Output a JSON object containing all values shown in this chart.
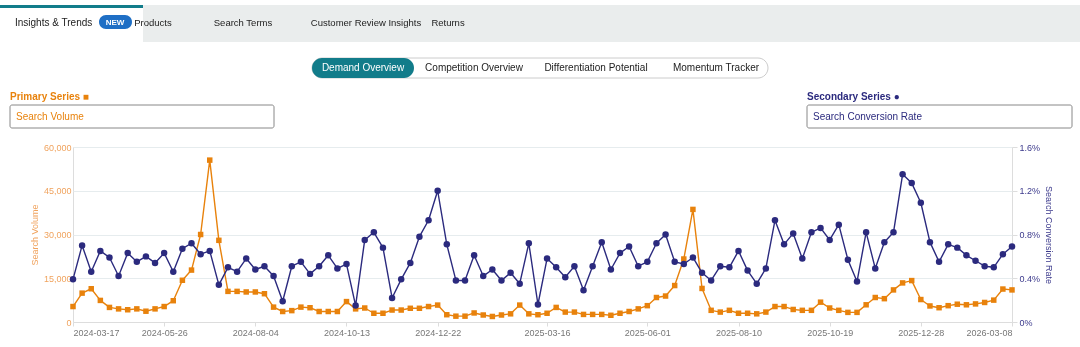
{
  "chart_data": {
    "type": "line",
    "x": [
      "2024-03-17",
      "2024-03-24",
      "2024-03-31",
      "2024-04-07",
      "2024-04-14",
      "2024-04-21",
      "2024-04-28",
      "2024-05-05",
      "2024-05-12",
      "2024-05-19",
      "2024-05-26",
      "2024-06-02",
      "2024-06-09",
      "2024-06-16",
      "2024-06-23",
      "2024-06-30",
      "2024-07-07",
      "2024-07-14",
      "2024-07-21",
      "2024-07-28",
      "2024-08-04",
      "2024-08-11",
      "2024-08-18",
      "2024-08-25",
      "2024-09-01",
      "2024-09-08",
      "2024-09-15",
      "2024-09-22",
      "2024-09-29",
      "2024-10-06",
      "2024-10-13",
      "2024-10-20",
      "2024-10-27",
      "2024-11-03",
      "2024-11-10",
      "2024-11-17",
      "2024-11-24",
      "2024-12-01",
      "2024-12-08",
      "2024-12-15",
      "2024-12-22",
      "2024-12-29",
      "2025-01-05",
      "2025-01-12",
      "2025-01-19",
      "2025-01-26",
      "2025-02-02",
      "2025-02-09",
      "2025-02-16",
      "2025-02-23",
      "2025-03-02",
      "2025-03-09",
      "2025-03-16",
      "2025-03-23",
      "2025-03-30",
      "2025-04-06",
      "2025-04-13",
      "2025-04-20",
      "2025-04-27",
      "2025-05-04",
      "2025-05-11",
      "2025-05-18",
      "2025-05-25",
      "2025-06-01",
      "2025-06-08",
      "2025-06-15",
      "2025-06-22",
      "2025-06-29",
      "2025-07-06",
      "2025-07-13",
      "2025-07-20",
      "2025-07-27",
      "2025-08-03",
      "2025-08-10",
      "2025-08-17",
      "2025-08-24",
      "2025-08-31",
      "2025-09-07",
      "2025-09-14",
      "2025-09-21",
      "2025-09-28",
      "2025-10-05",
      "2025-10-12",
      "2025-10-19",
      "2025-10-26",
      "2025-11-02",
      "2025-11-09",
      "2025-11-16",
      "2025-11-23",
      "2025-11-30",
      "2025-12-07",
      "2025-12-14",
      "2025-12-21",
      "2025-12-28",
      "2026-01-04",
      "2026-01-11",
      "2026-01-18",
      "2026-01-25",
      "2026-02-01",
      "2026-02-08",
      "2026-02-15",
      "2026-02-22",
      "2026-03-01",
      "2026-03-08"
    ],
    "series": [
      {
        "color": "#e8820c",
        "marker": "square",
        "values": [
          5300,
          9900,
          11400,
          7400,
          5000,
          4500,
          4200,
          4500,
          3700,
          4500,
          5300,
          7300,
          14300,
          17800,
          30000,
          55500,
          28000,
          10500,
          10500,
          10300,
          10300,
          9700,
          5100,
          3600,
          3900,
          5100,
          4900,
          3600,
          3600,
          3600,
          7000,
          4500,
          4800,
          3000,
          3000,
          4100,
          4100,
          4700,
          4700,
          5300,
          5800,
          2500,
          2000,
          2000,
          3100,
          2400,
          1900,
          2400,
          2800,
          5800,
          2800,
          2500,
          3000,
          5000,
          3400,
          3400,
          2600,
          2600,
          2600,
          2300,
          3000,
          3600,
          4500,
          5600,
          8400,
          8900,
          12500,
          21600,
          38600,
          11500,
          4000,
          3400,
          4000,
          3000,
          3000,
          2800,
          3400,
          5300,
          5300,
          4300,
          4000,
          4000,
          6800,
          4800,
          4000,
          3300,
          3300,
          5900,
          8400,
          8000,
          11000,
          13400,
          14200,
          7700,
          5500,
          4900,
          5600,
          6100,
          5900,
          6200,
          6700,
          7500,
          11300,
          11000
        ]
      },
      {
        "color": "#2b2a7e",
        "marker": "circle",
        "axis": "y2",
        "values": [
          0.39,
          0.7,
          0.46,
          0.65,
          0.59,
          0.42,
          0.63,
          0.55,
          0.6,
          0.54,
          0.63,
          0.46,
          0.67,
          0.72,
          0.62,
          0.65,
          0.34,
          0.5,
          0.46,
          0.58,
          0.48,
          0.51,
          0.42,
          0.19,
          0.51,
          0.55,
          0.44,
          0.51,
          0.61,
          0.49,
          0.53,
          0.15,
          0.75,
          0.82,
          0.68,
          0.22,
          0.39,
          0.54,
          0.78,
          0.93,
          1.2,
          0.71,
          0.38,
          0.38,
          0.61,
          0.42,
          0.48,
          0.38,
          0.45,
          0.35,
          0.72,
          0.16,
          0.58,
          0.5,
          0.41,
          0.51,
          0.29,
          0.51,
          0.73,
          0.48,
          0.63,
          0.69,
          0.51,
          0.55,
          0.72,
          0.8,
          0.55,
          0.53,
          0.59,
          0.45,
          0.38,
          0.51,
          0.5,
          0.65,
          0.47,
          0.35,
          0.49,
          0.93,
          0.71,
          0.81,
          0.58,
          0.82,
          0.86,
          0.75,
          0.89,
          0.57,
          0.37,
          0.82,
          0.49,
          0.73,
          0.82,
          1.35,
          1.27,
          1.09,
          0.73,
          0.55,
          0.71,
          0.68,
          0.61,
          0.56,
          0.51,
          0.5,
          0.62,
          0.69
        ]
      }
    ],
    "xlim": [
      "2024-03-17",
      "2026-03-08"
    ],
    "xticks": [
      "2024-03-17",
      "2024-05-26",
      "2024-08-04",
      "2024-10-13",
      "2024-12-22",
      "2025-03-16",
      "2025-06-01",
      "2025-08-10",
      "2025-10-19",
      "2025-12-28",
      "2026-03-08"
    ],
    "ylim": [
      0,
      60000
    ],
    "yticks": [
      0,
      {
        "value": 15000,
        "label": "15,000"
      },
      {
        "value": 30000,
        "label": "30,000"
      },
      {
        "value": 45000,
        "label": "45,000"
      },
      {
        "value": 60000,
        "label": "60,000"
      }
    ],
    "y2lim": [
      0,
      1.6
    ],
    "y2ticks": [
      {
        "value": 0,
        "label": "0%"
      },
      {
        "value": 0.4,
        "label": "0.4%"
      },
      {
        "value": 0.8,
        "label": "0.8%"
      },
      {
        "value": 1.2,
        "label": "1.2%"
      },
      {
        "value": 1.6,
        "label": "1.6%"
      }
    ],
    "ylabel": "Search Volume",
    "y2label": "Search Conversion Rate",
    "grid": "y",
    "line_style": "solid",
    "annotations": [
      "Insights & Trends",
      "NEW",
      "Products",
      "Search Terms",
      "Customer Review Insights",
      "Returns",
      "Demand Overview",
      "Competition Overview",
      "Differentiation Potential",
      "Momentum Tracker",
      "Primary Series ■",
      "Search Volume",
      "Secondary Series ●",
      "Search Conversion Rate"
    ]
  }
}
